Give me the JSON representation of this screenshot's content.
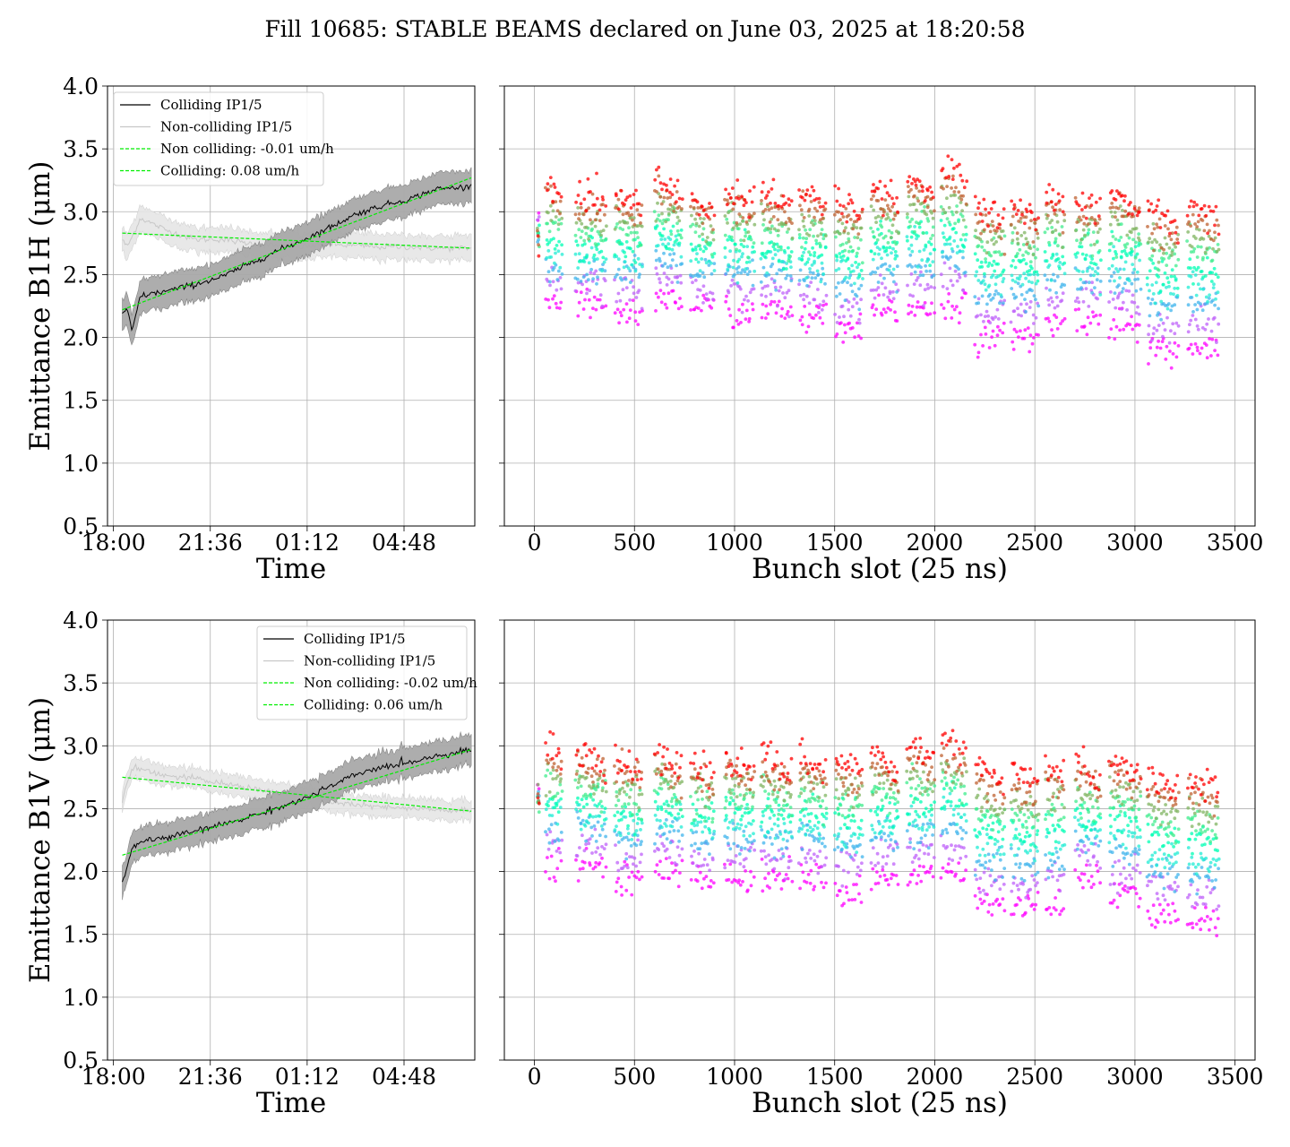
{
  "title": "Fill 10685: STABLE BEAMS declared on June 03, 2025 at 18:20:58",
  "chart_data": [
    {
      "type": "line",
      "panel": "top-left",
      "ylabel": "Emittance B1H (μm)",
      "xlabel": "Time",
      "ylim": [
        0.5,
        4.0
      ],
      "yticks": [
        "0.5",
        "1.0",
        "1.5",
        "2.0",
        "2.5",
        "3.0",
        "3.5",
        "4.0"
      ],
      "xticks": [
        "18:00",
        "21:36",
        "01:12",
        "04:48"
      ],
      "x_hours": [
        0.33,
        0.5,
        0.7,
        1,
        2,
        3,
        4,
        5,
        6,
        7,
        8,
        9,
        10,
        11,
        12,
        13.3
      ],
      "grid": true,
      "legend_position": "upper-left",
      "series": [
        {
          "name": "Colliding IP1/5",
          "color": "#000000",
          "values": [
            2.18,
            2.22,
            2.05,
            2.33,
            2.37,
            2.42,
            2.48,
            2.58,
            2.68,
            2.77,
            2.87,
            2.98,
            3.05,
            3.1,
            3.18,
            3.2
          ],
          "band_width": 0.13
        },
        {
          "name": "Non-colliding IP1/5",
          "color": "#c8c8c8",
          "values": [
            2.78,
            2.72,
            2.8,
            2.95,
            2.85,
            2.78,
            2.78,
            2.75,
            2.73,
            2.72,
            2.74,
            2.73,
            2.72,
            2.72,
            2.71,
            2.71
          ],
          "band_width": 0.1
        },
        {
          "name": "Non colliding: -0.01 um/h",
          "color": "#00ee00",
          "style": "dashed",
          "fit_start": [
            0.33,
            2.83
          ],
          "fit_end": [
            13.3,
            2.71
          ]
        },
        {
          "name": "Colliding: 0.08 um/h",
          "color": "#00ee00",
          "style": "dashed",
          "fit_start": [
            0.33,
            2.22
          ],
          "fit_end": [
            13.3,
            3.27
          ]
        }
      ]
    },
    {
      "type": "scatter",
      "panel": "top-right",
      "xlabel": "Bunch slot (25 ns)",
      "ylim": [
        0.5,
        4.0
      ],
      "xlim": [
        -150,
        3600
      ],
      "xticks": [
        "0",
        "500",
        "1000",
        "1500",
        "2000",
        "2500",
        "3000",
        "3500"
      ],
      "grid": true,
      "colormap": "rainbow (purple = earliest, red = latest)",
      "trains": [
        [
          15,
          25
        ],
        [
          55,
          140
        ],
        [
          205,
          360
        ],
        [
          400,
          540
        ],
        [
          600,
          740
        ],
        [
          780,
          900
        ],
        [
          950,
          1100
        ],
        [
          1130,
          1290
        ],
        [
          1320,
          1460
        ],
        [
          1500,
          1640
        ],
        [
          1680,
          1820
        ],
        [
          1860,
          2000
        ],
        [
          2030,
          2160
        ],
        [
          2200,
          2350
        ],
        [
          2380,
          2520
        ],
        [
          2550,
          2650
        ],
        [
          2700,
          2830
        ],
        [
          2870,
          3030
        ],
        [
          3060,
          3220
        ],
        [
          3260,
          3420
        ]
      ],
      "first_time_level": [
        2.9,
        2.25,
        2.25,
        2.2,
        2.3,
        2.25,
        2.2,
        2.2,
        2.15,
        2.05,
        2.2,
        2.25,
        2.25,
        2.0,
        2.0,
        2.1,
        2.15,
        2.1,
        1.9,
        1.9
      ],
      "last_time_level": [
        2.75,
        3.15,
        3.1,
        3.1,
        3.2,
        3.05,
        3.1,
        3.1,
        3.1,
        3.05,
        3.15,
        3.2,
        3.3,
        3.0,
        3.0,
        3.1,
        3.05,
        3.1,
        2.95,
        3.0
      ]
    },
    {
      "type": "line",
      "panel": "bottom-left",
      "ylabel": "Emittance B1V (μm)",
      "xlabel": "Time",
      "ylim": [
        0.5,
        4.0
      ],
      "yticks": [
        "0.5",
        "1.0",
        "1.5",
        "2.0",
        "2.5",
        "3.0",
        "3.5",
        "4.0"
      ],
      "xticks": [
        "18:00",
        "21:36",
        "01:12",
        "04:48"
      ],
      "x_hours": [
        0.33,
        0.5,
        0.7,
        1,
        2,
        3,
        4,
        5,
        6,
        7,
        8,
        9,
        10,
        11,
        12,
        13.3
      ],
      "grid": true,
      "legend_position": "upper-right",
      "series": [
        {
          "name": "Colliding IP1/5",
          "color": "#000000",
          "values": [
            1.92,
            2.02,
            2.18,
            2.24,
            2.27,
            2.32,
            2.37,
            2.43,
            2.5,
            2.57,
            2.67,
            2.77,
            2.83,
            2.87,
            2.92,
            2.97
          ],
          "band_width": 0.12
        },
        {
          "name": "Non-colliding IP1/5",
          "color": "#c8c8c8",
          "values": [
            2.55,
            2.72,
            2.82,
            2.82,
            2.76,
            2.74,
            2.7,
            2.67,
            2.63,
            2.6,
            2.56,
            2.53,
            2.51,
            2.5,
            2.49,
            2.48
          ],
          "band_width": 0.08
        },
        {
          "name": "Non colliding: -0.02 um/h",
          "color": "#00ee00",
          "style": "dashed",
          "fit_start": [
            0.33,
            2.75
          ],
          "fit_end": [
            13.3,
            2.48
          ]
        },
        {
          "name": "Colliding: 0.06 um/h",
          "color": "#00ee00",
          "style": "dashed",
          "fit_start": [
            0.33,
            2.13
          ],
          "fit_end": [
            13.3,
            2.97
          ]
        }
      ]
    },
    {
      "type": "scatter",
      "panel": "bottom-right",
      "xlabel": "Bunch slot (25 ns)",
      "ylim": [
        0.5,
        4.0
      ],
      "xlim": [
        -150,
        3600
      ],
      "xticks": [
        "0",
        "500",
        "1000",
        "1500",
        "2000",
        "2500",
        "3000",
        "3500"
      ],
      "grid": true,
      "colormap": "rainbow (purple = earliest, red = latest)",
      "trains": [
        [
          15,
          25
        ],
        [
          55,
          140
        ],
        [
          205,
          360
        ],
        [
          400,
          540
        ],
        [
          600,
          740
        ],
        [
          780,
          900
        ],
        [
          950,
          1100
        ],
        [
          1130,
          1290
        ],
        [
          1320,
          1460
        ],
        [
          1500,
          1640
        ],
        [
          1680,
          1820
        ],
        [
          1860,
          2000
        ],
        [
          2030,
          2160
        ],
        [
          2200,
          2350
        ],
        [
          2380,
          2520
        ],
        [
          2550,
          2650
        ],
        [
          2700,
          2830
        ],
        [
          2870,
          3030
        ],
        [
          3060,
          3220
        ],
        [
          3260,
          3420
        ]
      ],
      "first_time_level": [
        2.6,
        2.05,
        2.05,
        1.95,
        2.0,
        1.95,
        1.95,
        1.95,
        1.95,
        1.85,
        1.95,
        1.95,
        2.0,
        1.75,
        1.7,
        1.75,
        1.95,
        1.8,
        1.65,
        1.6
      ],
      "last_time_level": [
        2.55,
        2.95,
        2.9,
        2.85,
        2.9,
        2.8,
        2.85,
        2.85,
        2.85,
        2.85,
        2.9,
        2.95,
        3.0,
        2.75,
        2.75,
        2.8,
        2.8,
        2.85,
        2.7,
        2.7
      ]
    }
  ]
}
